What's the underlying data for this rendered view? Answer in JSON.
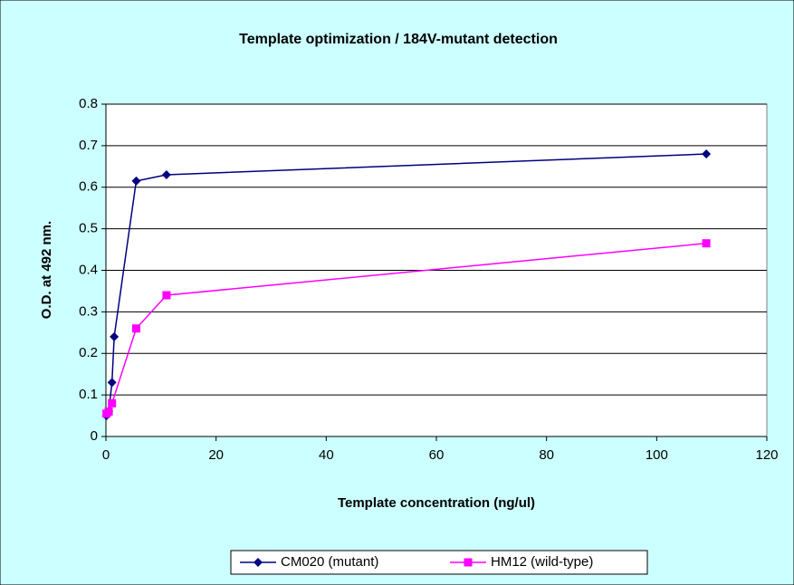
{
  "chart_data": {
    "type": "line",
    "title": "Template optimization / 184V-mutant detection",
    "x_label": "Template concentration (ng/ul)",
    "y_label": "O.D. at 492 nm.",
    "xlim": [
      0,
      120
    ],
    "xticks": [
      0,
      20,
      40,
      60,
      80,
      100,
      120
    ],
    "ylim": [
      0,
      0.8
    ],
    "yticks": [
      0,
      0.1,
      0.2,
      0.3,
      0.4,
      0.5,
      0.6,
      0.7,
      0.8
    ],
    "grid": true,
    "legend": "bottom",
    "series": [
      {
        "name": "CM020 (mutant)",
        "color": "#000080",
        "marker": "diamond",
        "x": [
          0.1,
          0.5,
          1.1,
          1.5,
          5.5,
          11,
          109
        ],
        "values": [
          0.05,
          0.06,
          0.13,
          0.24,
          0.615,
          0.63,
          0.68
        ]
      },
      {
        "name": "HM12 (wild-type)",
        "color": "#ff00ff",
        "marker": "square",
        "x": [
          0.1,
          0.5,
          1.1,
          5.5,
          11,
          109
        ],
        "values": [
          0.055,
          0.06,
          0.08,
          0.26,
          0.34,
          0.465
        ]
      }
    ]
  }
}
